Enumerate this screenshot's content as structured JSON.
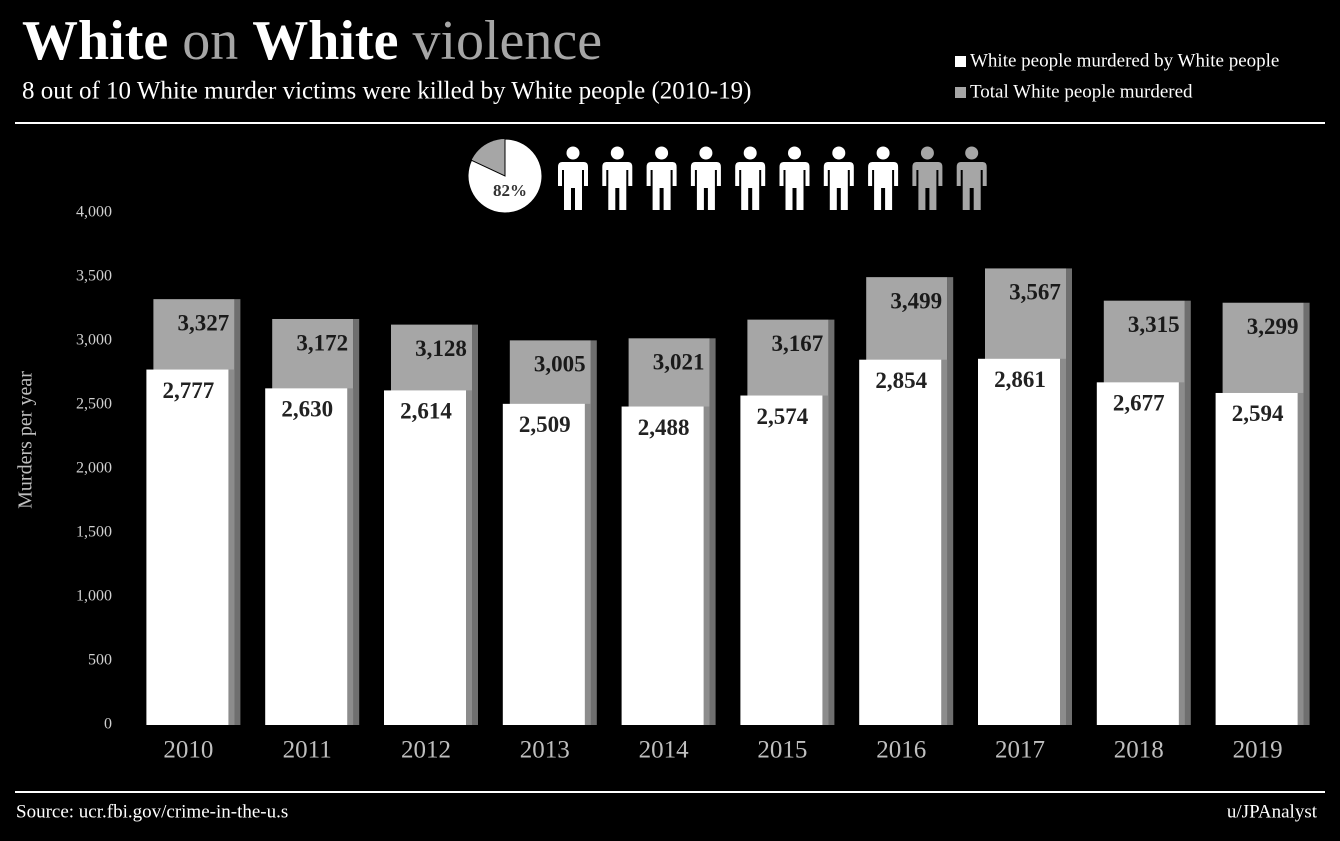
{
  "chart_data": {
    "type": "bar",
    "title": [
      "White",
      "on",
      "White",
      "violence"
    ],
    "subtitle": "8 out of 10 White murder victims were killed by White people (2010-19)",
    "y_label": "Murders per year",
    "source": "Source: ucr.fbi.gov/crime-in-the-u.s",
    "author": "u/JPAnalyst",
    "inset_pie": {
      "value": 82,
      "label": "82%"
    },
    "pictogram": {
      "filled": 8,
      "total": 10
    },
    "categories": [
      "2010",
      "2011",
      "2012",
      "2013",
      "2014",
      "2015",
      "2016",
      "2017",
      "2018",
      "2019"
    ],
    "series": [
      {
        "name": "White people murdered by White people",
        "color": "#ffffff",
        "values": [
          2777,
          2630,
          2614,
          2509,
          2488,
          2574,
          2854,
          2861,
          2677,
          2594
        ],
        "value_labels": [
          "2,777",
          "2,630",
          "2,614",
          "2,509",
          "2,488",
          "2,574",
          "2,854",
          "2,861",
          "2,677",
          "2,594"
        ]
      },
      {
        "name": "Total White people murdered",
        "color": "#a6a6a6",
        "values": [
          3327,
          3172,
          3128,
          3005,
          3021,
          3167,
          3499,
          3567,
          3315,
          3299
        ],
        "value_labels": [
          "3,327",
          "3,172",
          "3,128",
          "3,005",
          "3,021",
          "3,167",
          "3,499",
          "3,567",
          "3,315",
          "3,299"
        ]
      }
    ],
    "ylim": [
      0,
      4000
    ],
    "yticks": [
      0,
      500,
      {
        "value": 1000,
        "label": "1,000"
      },
      {
        "value": 1500,
        "label": "1,500"
      },
      {
        "value": 2000,
        "label": "2,000"
      },
      {
        "value": 2500,
        "label": "2,500"
      },
      {
        "value": 3000,
        "label": "3,000"
      },
      {
        "value": 3500,
        "label": "3,500"
      },
      {
        "value": 4000,
        "label": "4,000"
      }
    ],
    "grid": false
  }
}
